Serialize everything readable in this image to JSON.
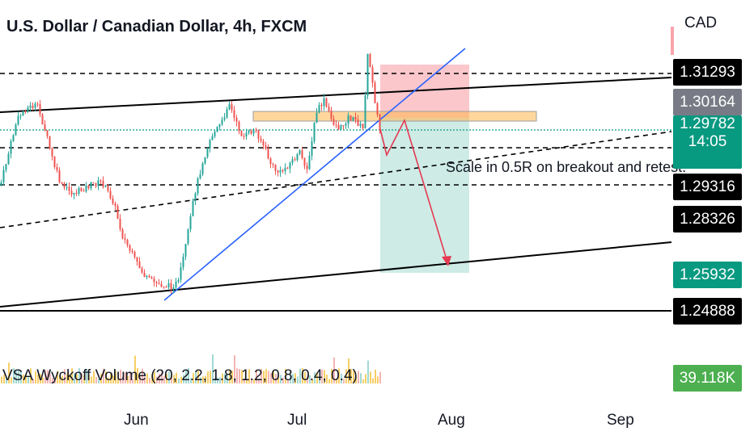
{
  "header": {
    "title": "U.S. Dollar / Canadian Dollar, 4h, FXCM",
    "currency": "CAD"
  },
  "price_axis": {
    "labels": [
      {
        "id": "top-line",
        "text": "1.31293",
        "color": "#000000"
      },
      {
        "id": "mid-gray",
        "text": "1.30164",
        "color": "#787b86"
      },
      {
        "id": "current",
        "text": "1.29782",
        "sub": "14:05",
        "color": "#089981"
      },
      {
        "id": "support-1",
        "text": "1.29316",
        "color": "#000000"
      },
      {
        "id": "support-2",
        "text": "1.28326",
        "color": "#000000"
      },
      {
        "id": "target",
        "text": "1.25932",
        "color": "#089981"
      },
      {
        "id": "bottom-line",
        "text": "1.24888",
        "color": "#000000"
      }
    ]
  },
  "time_axis": [
    "Jun",
    "Jul",
    "Aug",
    "Sep"
  ],
  "annotation": "Scale in 0.5R on breakout and retest.",
  "indicator": {
    "label": "VSA Wyckoff Volume (20, 2.2, 1.8, 1.2, 0.8, 0.4, 0.4)",
    "value": "39.118K",
    "value_color": "#4caf50"
  },
  "colors": {
    "up": "#26a69a",
    "down": "#ef5350",
    "trendline": "#2962ff",
    "channel": "#000000",
    "current_price_line": "#089981",
    "arrow": "#e53950"
  }
}
